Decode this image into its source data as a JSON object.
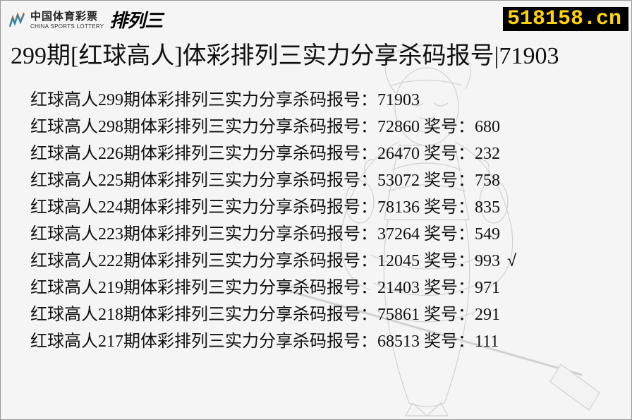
{
  "logo": {
    "cn": "中国体育彩票",
    "en": "CHINA SPORTS LOTTERY",
    "suffix": "排列三"
  },
  "site_badge": "518158.cn",
  "title": "299期[红球高人]体彩排列三实力分享杀码报号|71903",
  "entry_prefix": "红球高人",
  "entry_mid": "期体彩排列三实力分享杀码报号：",
  "prize_label": " 奖号：",
  "check_mark": "√",
  "entries": [
    {
      "period": "299",
      "code": "71903",
      "prize": "",
      "check": false
    },
    {
      "period": "298",
      "code": "72860",
      "prize": "680",
      "check": false
    },
    {
      "period": "226",
      "code": "26470",
      "prize": "232",
      "check": false
    },
    {
      "period": "225",
      "code": "53072",
      "prize": "758",
      "check": false
    },
    {
      "period": "224",
      "code": "78136",
      "prize": "835",
      "check": false
    },
    {
      "period": "223",
      "code": "37264",
      "prize": "549",
      "check": false
    },
    {
      "period": "222",
      "code": "12045",
      "prize": "993",
      "check": true
    },
    {
      "period": "219",
      "code": "21403",
      "prize": "971",
      "check": false
    },
    {
      "period": "218",
      "code": "75861",
      "prize": "291",
      "check": false
    },
    {
      "period": "217",
      "code": "68513",
      "prize": "111",
      "check": false
    }
  ],
  "colors": {
    "text": "#111111",
    "badge_bg": "#000000",
    "badge_fg": "#ffd400",
    "bg": "#f5f5f5",
    "figure_stroke": "#555555"
  }
}
